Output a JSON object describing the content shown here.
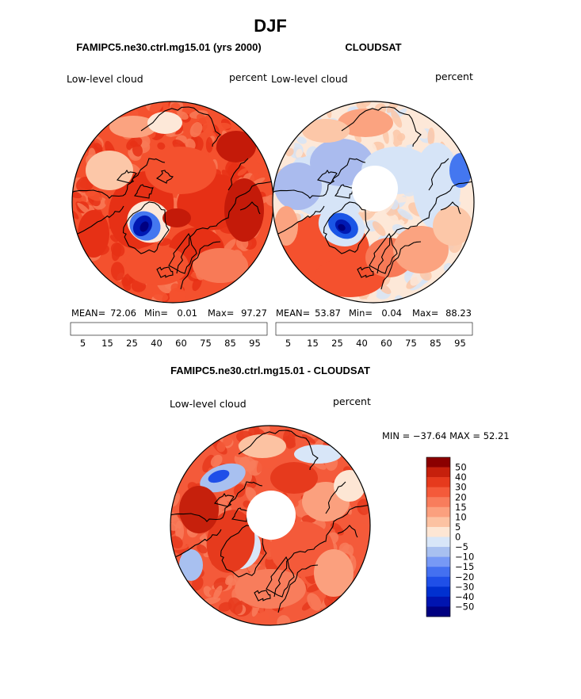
{
  "page": {
    "title": "DJF"
  },
  "panel_left": {
    "subtitle": "FAMIPC5.ne30.ctrl.mg15.01 (yrs 2000)",
    "left_label": "Low-level cloud",
    "right_label": "percent",
    "stats": {
      "mean_label": "MEAN=",
      "mean": "72.06",
      "min_label": "Min=",
      "min": "0.01",
      "max_label": "Max=",
      "max": "97.27"
    }
  },
  "panel_right": {
    "subtitle": "CLOUDSAT",
    "left_label": "Low-level cloud",
    "right_label": "percent",
    "stats": {
      "mean_label": "MEAN=",
      "mean": "53.87",
      "min_label": "Min=",
      "min": "0.04",
      "max_label": "Max=",
      "max": "88.23"
    }
  },
  "panel_diff": {
    "subtitle": "FAMIPC5.ne30.ctrl.mg15.01 - CLOUDSAT",
    "left_label": "Low-level cloud",
    "right_label": "percent",
    "minmax": "MIN = −37.64 MAX =  52.21"
  },
  "colors": {
    "abs_scale": [
      "#000080",
      "#0019b3",
      "#0033cc",
      "#1a55e6",
      "#4477f0",
      "#7799f2",
      "#aabbee",
      "#d6e4f7",
      "#fde8d8",
      "#fcc7a8",
      "#fba380",
      "#f87a57",
      "#f4512e",
      "#e63015",
      "#c41a09",
      "#8b0000"
    ],
    "diff_scale": [
      "#000080",
      "#0014b0",
      "#0030d0",
      "#1f4fe8",
      "#4470f0",
      "#7799f5",
      "#a8c0f0",
      "#d8e6f8",
      "#fde6d4",
      "#fcc2a2",
      "#fba07e",
      "#f87d5c",
      "#f45a3a",
      "#e63a1d",
      "#c6200c",
      "#8b0000"
    ],
    "land_outline": "#000000"
  },
  "chart_data": [
    {
      "type": "heatmap",
      "projection": "north polar stereographic",
      "name": "FAMIPC5.ne30.ctrl.mg15.01 (yrs 2000)",
      "variable": "Low-level cloud",
      "units": "percent",
      "mean": 72.06,
      "min": 0.01,
      "max": 97.27,
      "colorbar_levels": [
        5,
        10,
        15,
        20,
        25,
        30,
        40,
        50,
        60,
        65,
        75,
        80,
        85,
        90,
        95
      ],
      "colorbar_labels": [
        "5",
        "15",
        "25",
        "40",
        "60",
        "75",
        "85",
        "95"
      ],
      "colorbar_orientation": "horizontal"
    },
    {
      "type": "heatmap",
      "projection": "north polar stereographic",
      "name": "CLOUDSAT",
      "variable": "Low-level cloud",
      "units": "percent",
      "mean": 53.87,
      "min": 0.04,
      "max": 88.23,
      "colorbar_levels": [
        5,
        10,
        15,
        20,
        25,
        30,
        40,
        50,
        60,
        65,
        75,
        80,
        85,
        90,
        95
      ],
      "colorbar_labels": [
        "5",
        "15",
        "25",
        "40",
        "60",
        "75",
        "85",
        "95"
      ],
      "colorbar_orientation": "horizontal",
      "missing_pole": true
    },
    {
      "type": "heatmap",
      "projection": "north polar stereographic",
      "name": "FAMIPC5.ne30.ctrl.mg15.01 - CLOUDSAT",
      "variable": "Low-level cloud",
      "units": "percent",
      "min": -37.64,
      "max": 52.21,
      "colorbar_levels": [
        -50,
        -40,
        -30,
        -20,
        -15,
        -10,
        -5,
        0,
        5,
        10,
        15,
        20,
        30,
        40,
        50
      ],
      "colorbar_labels": [
        "50",
        "40",
        "30",
        "20",
        "15",
        "10",
        "5",
        "0",
        "−5",
        "−10",
        "−15",
        "−20",
        "−30",
        "−40",
        "−50"
      ],
      "colorbar_orientation": "vertical",
      "missing_pole": true
    }
  ]
}
